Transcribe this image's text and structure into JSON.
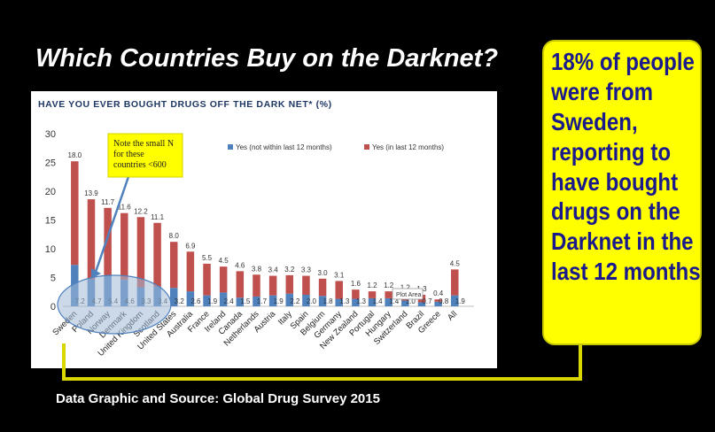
{
  "slide": {
    "title": "Which Countries Buy on the Darknet?",
    "callout_text": "18% of people were from Sweden, reporting to have bought drugs on the Darknet in the last 12 months",
    "source": "Data Graphic and Source: Global Drug Survey 2015"
  },
  "colors": {
    "background": "#000000",
    "callout_fill": "#ffff00",
    "callout_text": "#1a1a8c",
    "series_past": "#4f81bd",
    "series_recent": "#c0504d",
    "note_fill": "#ffff00",
    "connector": "#d8d800"
  },
  "chart_data": {
    "type": "bar",
    "stacked": true,
    "title": "HAVE YOU EVER BOUGHT DRUGS OFF THE DARK NET* (%)",
    "xlabel": "",
    "ylabel": "",
    "ylim": [
      0,
      30
    ],
    "yticks": [
      0,
      5,
      10,
      15,
      20,
      25,
      30
    ],
    "categories": [
      "Sweden",
      "Poland",
      "Norway",
      "Denmark",
      "United Kingdom",
      "Scotland",
      "United States",
      "Australia",
      "France",
      "Ireland",
      "Canada",
      "Netherlands",
      "Austria",
      "Italy",
      "Spain",
      "Belgium",
      "Germany",
      "New Zealand",
      "Portugal",
      "Hungary",
      "Switzerland",
      "Brazil",
      "Greece",
      "All"
    ],
    "series": [
      {
        "name": "Yes (not within last 12 months)",
        "color": "#4f81bd",
        "values": [
          7.2,
          4.7,
          5.4,
          4.6,
          3.3,
          3.4,
          3.2,
          2.6,
          1.9,
          2.4,
          1.5,
          1.7,
          1.9,
          2.2,
          2.0,
          1.8,
          1.3,
          1.3,
          1.4,
          1.4,
          1.0,
          0.7,
          0.8,
          1.9
        ]
      },
      {
        "name": "Yes (in last 12 months)",
        "color": "#c0504d",
        "values": [
          18.0,
          13.9,
          11.7,
          11.6,
          12.2,
          11.1,
          8.0,
          6.9,
          5.5,
          4.5,
          4.6,
          3.8,
          3.4,
          3.2,
          3.3,
          3.0,
          3.1,
          1.6,
          1.2,
          1.2,
          1.2,
          1.3,
          0.4,
          4.5
        ]
      }
    ],
    "legend": "top",
    "grid": false,
    "annotations": {
      "note": [
        "Note the small N",
        "for these",
        "countries <600"
      ],
      "plot_area_label": "Plot Area"
    }
  }
}
